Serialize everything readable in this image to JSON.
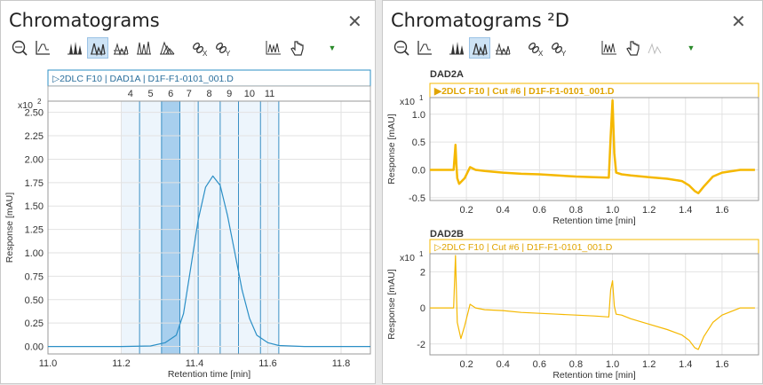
{
  "left": {
    "title": "Chromatograms",
    "close": "✕",
    "header_label": "▷2DLC F10 | DAD1A | D1F-F1-0101_001.D",
    "cut_labels": [
      "4",
      "5",
      "6",
      "7",
      "8",
      "9",
      "10",
      "11"
    ],
    "selected_cut": "6",
    "chart_data": {
      "type": "line",
      "exponent_label": "x10",
      "exponent_sup": "2",
      "xlabel": "Retention time [min]",
      "ylabel": "Response [mAU]",
      "xlim": [
        11.0,
        11.88
      ],
      "ylim": [
        -0.08,
        2.62
      ],
      "xticks": [
        "11.0",
        "11.2",
        "11.4",
        "11.6",
        "11.8"
      ],
      "yticks": [
        "0.00",
        "0.25",
        "0.50",
        "0.75",
        "1.00",
        "1.25",
        "1.50",
        "1.75",
        "2.00",
        "2.25",
        "2.50"
      ],
      "cut_boundaries": [
        11.2,
        11.25,
        11.31,
        11.36,
        11.41,
        11.47,
        11.52,
        11.58,
        11.63
      ],
      "series": [
        {
          "color": "#2b8fc6",
          "x": [
            11.0,
            11.2,
            11.28,
            11.32,
            11.35,
            11.37,
            11.39,
            11.41,
            11.43,
            11.45,
            11.47,
            11.49,
            11.51,
            11.53,
            11.55,
            11.57,
            11.6,
            11.63,
            11.7,
            11.88
          ],
          "y": [
            0,
            0,
            0.005,
            0.04,
            0.12,
            0.35,
            0.85,
            1.35,
            1.7,
            1.82,
            1.72,
            1.4,
            1.0,
            0.6,
            0.3,
            0.12,
            0.04,
            0.01,
            0,
            0
          ]
        }
      ]
    }
  },
  "right": {
    "title": "Chromatograms ²D",
    "close": "✕",
    "charts": [
      {
        "name": "DAD2A",
        "header_label": "▶2DLC F10 | Cut #6 | D1F-F1-0101_001.D",
        "exponent_label": "x10",
        "exponent_sup": "1",
        "xlabel": "Retention time [min]",
        "ylabel": "Response [mAU]",
        "xlim": [
          0.0,
          1.8
        ],
        "ylim": [
          -0.55,
          1.3
        ],
        "xticks": [
          "0.2",
          "0.4",
          "0.6",
          "0.8",
          "1.0",
          "1.2",
          "1.4",
          "1.6"
        ],
        "yticks": [
          "-0.5",
          "0.0",
          "0.5",
          "1.0"
        ],
        "series": [
          {
            "color": "#f5b800",
            "width": 2.5,
            "x": [
              0.0,
              0.13,
              0.14,
              0.145,
              0.15,
              0.16,
              0.19,
              0.22,
              0.25,
              0.3,
              0.4,
              0.5,
              0.6,
              0.7,
              0.8,
              0.9,
              0.98,
              0.99,
              1.0,
              1.01,
              1.02,
              1.05,
              1.1,
              1.2,
              1.3,
              1.38,
              1.42,
              1.45,
              1.47,
              1.5,
              1.55,
              1.6,
              1.7,
              1.78
            ],
            "y": [
              0.0,
              0.0,
              0.45,
              0.1,
              -0.15,
              -0.25,
              -0.15,
              0.05,
              0.0,
              -0.02,
              -0.05,
              -0.07,
              -0.08,
              -0.1,
              -0.12,
              -0.13,
              -0.14,
              0.6,
              1.25,
              0.3,
              -0.05,
              -0.08,
              -0.1,
              -0.13,
              -0.16,
              -0.2,
              -0.28,
              -0.38,
              -0.42,
              -0.3,
              -0.12,
              -0.05,
              0.0,
              0.0
            ]
          }
        ]
      },
      {
        "name": "DAD2B",
        "header_label": "▷2DLC F10 | Cut #6 | D1F-F1-0101_001.D",
        "exponent_label": "x10",
        "exponent_sup": "1",
        "xlabel": "Retention time [min]",
        "ylabel": "Response [mAU]",
        "xlim": [
          0.0,
          1.8
        ],
        "ylim": [
          -2.6,
          3.0
        ],
        "xticks": [
          "0.2",
          "0.4",
          "0.6",
          "0.8",
          "1.0",
          "1.2",
          "1.4",
          "1.6"
        ],
        "yticks": [
          "-2",
          "0",
          "2"
        ],
        "series": [
          {
            "color": "#f5b800",
            "width": 1.2,
            "x": [
              0.0,
              0.13,
              0.14,
              0.145,
              0.15,
              0.17,
              0.19,
              0.22,
              0.25,
              0.3,
              0.4,
              0.5,
              0.6,
              0.7,
              0.8,
              0.9,
              0.98,
              0.99,
              1.0,
              1.01,
              1.02,
              1.05,
              1.1,
              1.2,
              1.3,
              1.38,
              1.42,
              1.45,
              1.47,
              1.5,
              1.55,
              1.6,
              1.7,
              1.78
            ],
            "y": [
              0.0,
              0.0,
              2.9,
              1.0,
              -0.8,
              -1.7,
              -1.0,
              0.2,
              0.0,
              -0.1,
              -0.15,
              -0.25,
              -0.3,
              -0.35,
              -0.4,
              -0.45,
              -0.5,
              1.0,
              1.5,
              0.1,
              -0.35,
              -0.4,
              -0.6,
              -0.9,
              -1.2,
              -1.5,
              -1.8,
              -2.2,
              -2.3,
              -1.6,
              -0.8,
              -0.4,
              0.0,
              0.0
            ]
          }
        ]
      }
    ]
  }
}
